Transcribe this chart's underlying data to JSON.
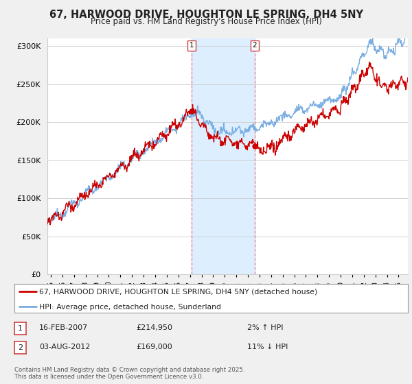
{
  "title": "67, HARWOOD DRIVE, HOUGHTON LE SPRING, DH4 5NY",
  "subtitle": "Price paid vs. HM Land Registry's House Price Index (HPI)",
  "legend_line1": "67, HARWOOD DRIVE, HOUGHTON LE SPRING, DH4 5NY (detached house)",
  "legend_line2": "HPI: Average price, detached house, Sunderland",
  "annotation1_date": "16-FEB-2007",
  "annotation1_price": "£214,950",
  "annotation1_hpi": "2% ↑ HPI",
  "annotation2_date": "03-AUG-2012",
  "annotation2_price": "£169,000",
  "annotation2_hpi": "11% ↓ HPI",
  "footnote": "Contains HM Land Registry data © Crown copyright and database right 2025.\nThis data is licensed under the Open Government Licence v3.0.",
  "sale1_year": 2007.12,
  "sale1_value": 214950,
  "sale2_year": 2012.58,
  "sale2_value": 169000,
  "property_color": "#cc0000",
  "hpi_color": "#7aade0",
  "vline_color": "#e08080",
  "span_color": "#ddeeff",
  "background_color": "#f0f0f0",
  "plot_background": "#ffffff",
  "ylim": [
    0,
    310000
  ],
  "xlim_start": 1994.7,
  "xlim_end": 2025.8
}
